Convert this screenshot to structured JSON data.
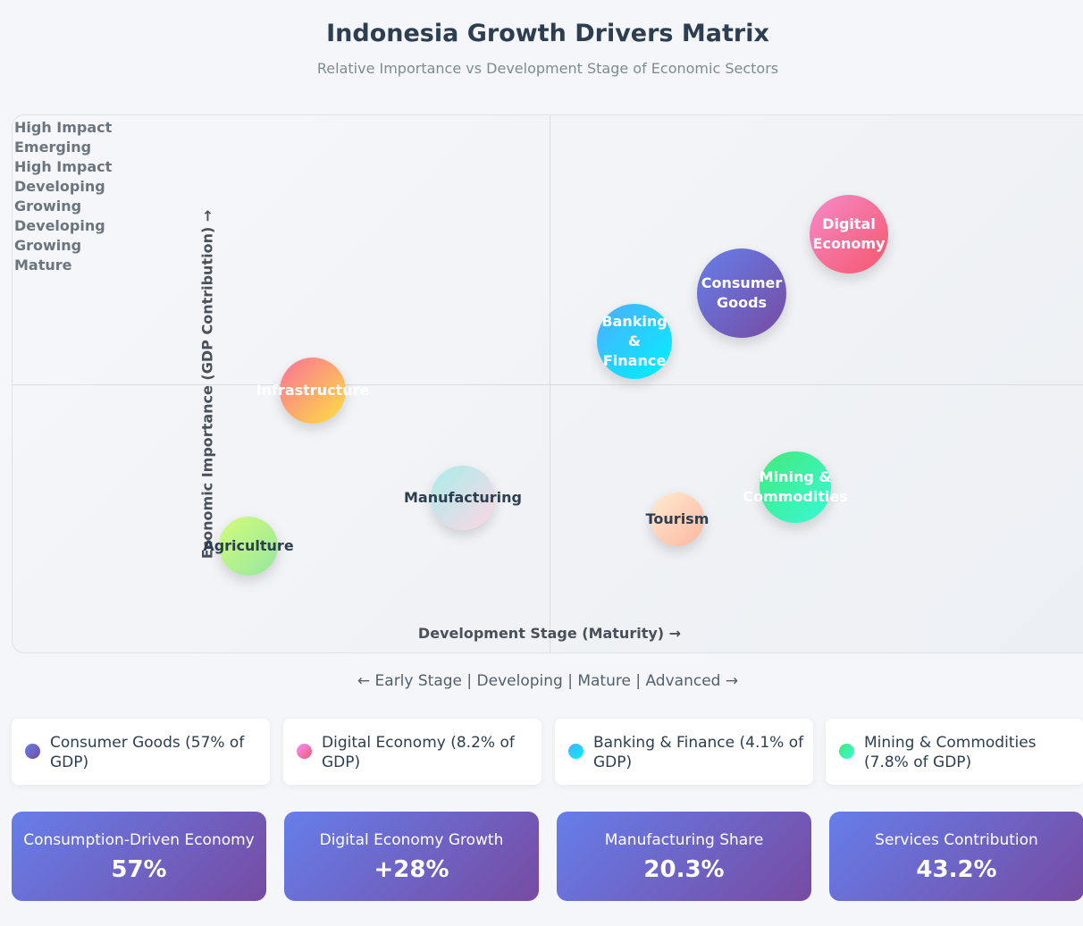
{
  "header": {
    "title": "Indonesia Growth Drivers Matrix",
    "subtitle": "Relative Importance vs Development Stage of Economic Sectors"
  },
  "chart_data": {
    "type": "scatter",
    "title": "Indonesia Growth Drivers Matrix",
    "subtitle": "Relative Importance vs Development Stage of Economic Sectors",
    "xlabel": "Development Stage (Maturity) →",
    "ylabel": "Economic Importance (GDP Contribution) →",
    "quadrant_labels": [
      "High Impact",
      "Emerging",
      "High Impact",
      "Developing",
      "Growing",
      "Developing",
      "Growing",
      "Mature"
    ],
    "stage_axis": "← Early Stage | Developing | Mature | Advanced →",
    "points": [
      {
        "label": "Digital Economy",
        "lines": [
          "Digital",
          "Economy"
        ],
        "x": 78,
        "y": 78,
        "size": 88,
        "colors": [
          "#f78ac9",
          "#f5576c"
        ],
        "text_color": "#ffffff"
      },
      {
        "label": "Consumer Goods",
        "lines": [
          "Consumer",
          "Goods"
        ],
        "x": 68,
        "y": 67,
        "size": 100,
        "colors": [
          "#667eea",
          "#764ba2"
        ],
        "text_color": "#ffffff"
      },
      {
        "label": "Banking & Finance",
        "lines": [
          "Banking",
          "&",
          "Finance"
        ],
        "x": 58,
        "y": 58,
        "size": 84,
        "colors": [
          "#4facfe",
          "#00f2fe"
        ],
        "text_color": "#ffffff"
      },
      {
        "label": "Infrastructure",
        "lines": [
          "Infrastructure"
        ],
        "x": 28,
        "y": 49,
        "size": 74,
        "colors": [
          "#fa709a",
          "#fee140"
        ],
        "text_color": "#ffffff"
      },
      {
        "label": "Mining & Commodities",
        "lines": [
          "Mining &",
          "Commodities"
        ],
        "x": 73,
        "y": 31,
        "size": 80,
        "colors": [
          "#43e97b",
          "#38f9d7"
        ],
        "text_color": "#ffffff"
      },
      {
        "label": "Manufacturing",
        "lines": [
          "Manufacturing"
        ],
        "x": 42,
        "y": 29,
        "size": 72,
        "colors": [
          "#a8edea",
          "#fed6e3"
        ],
        "text_color": "#2c3e50"
      },
      {
        "label": "Tourism",
        "lines": [
          "Tourism"
        ],
        "x": 62,
        "y": 25,
        "size": 60,
        "colors": [
          "#ffecd2",
          "#fcb69f"
        ],
        "text_color": "#2c3e50"
      },
      {
        "label": "Agriculture",
        "lines": [
          "Agriculture"
        ],
        "x": 22,
        "y": 20,
        "size": 66,
        "colors": [
          "#d4fc79",
          "#96e6a1"
        ],
        "text_color": "#2c3e50"
      }
    ]
  },
  "legend": [
    {
      "label": "Consumer Goods (57% of GDP)",
      "colors": [
        "#667eea",
        "#764ba2"
      ]
    },
    {
      "label": "Digital Economy (8.2% of GDP)",
      "colors": [
        "#f093fb",
        "#f5576c"
      ]
    },
    {
      "label": "Banking & Finance (4.1% of GDP)",
      "colors": [
        "#4facfe",
        "#00f2fe"
      ]
    },
    {
      "label": "Mining & Commodities (7.8% of GDP)",
      "colors": [
        "#43e97b",
        "#38f9d7"
      ]
    }
  ],
  "stats": [
    {
      "label": "Consumption-Driven Economy",
      "value": "57%"
    },
    {
      "label": "Digital Economy Growth",
      "value": "+28%"
    },
    {
      "label": "Manufacturing Share",
      "value": "20.3%"
    },
    {
      "label": "Services Contribution",
      "value": "43.2%"
    }
  ]
}
